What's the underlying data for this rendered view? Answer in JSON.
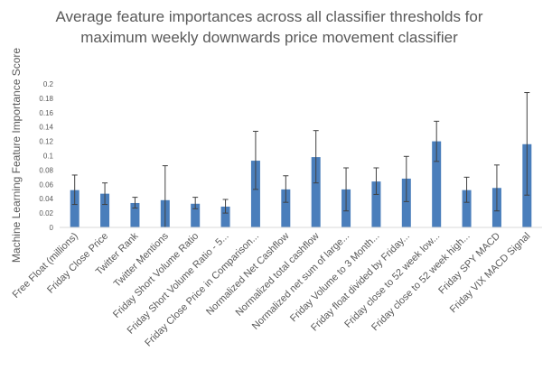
{
  "chart_data": {
    "type": "bar",
    "title_lines": [
      "Average feature importances across all classifier thresholds for",
      "maximum weekly downwards price movement classifier"
    ],
    "xlabel": "",
    "ylabel": "Machine Learning Feature Importance Score",
    "ylim": [
      0,
      0.2
    ],
    "yticks": [
      "0",
      "0.02",
      "0.04",
      "0.06",
      "0.08",
      "0.1",
      "0.12",
      "0.14",
      "0.16",
      "0.18",
      "0.2"
    ],
    "grid": false,
    "bar_color": "#4a7ebb",
    "categories": [
      "Free Float (millions)",
      "Friday Close Price",
      "Twitter Rank",
      "Twitter Mentions",
      "Friday Short Volume Ratio",
      "Friday Short Volume Ratio - 5...",
      "Friday Close Price in Comparison...",
      "Normalized Net Cashflow",
      "Normalized total cashflow",
      "Normalized net sum of large...",
      "Friday Volume to 3 Month...",
      "Friday float divided by Friday...",
      "Friday close to 52 week low...",
      "Friday close to 52 week high...",
      "Friday SPY MACD",
      "Friday VIX MACD Signal"
    ],
    "values": [
      0.052,
      0.047,
      0.034,
      0.038,
      0.033,
      0.029,
      0.093,
      0.053,
      0.098,
      0.053,
      0.064,
      0.068,
      0.12,
      0.052,
      0.055,
      0.116
    ],
    "error_low": [
      0.032,
      0.032,
      0.027,
      0.0,
      0.026,
      0.02,
      0.053,
      0.035,
      0.062,
      0.023,
      0.046,
      0.036,
      0.092,
      0.035,
      0.023,
      0.045
    ],
    "error_high": [
      0.073,
      0.062,
      0.042,
      0.086,
      0.042,
      0.039,
      0.134,
      0.072,
      0.135,
      0.083,
      0.083,
      0.099,
      0.148,
      0.07,
      0.087,
      0.188
    ]
  }
}
